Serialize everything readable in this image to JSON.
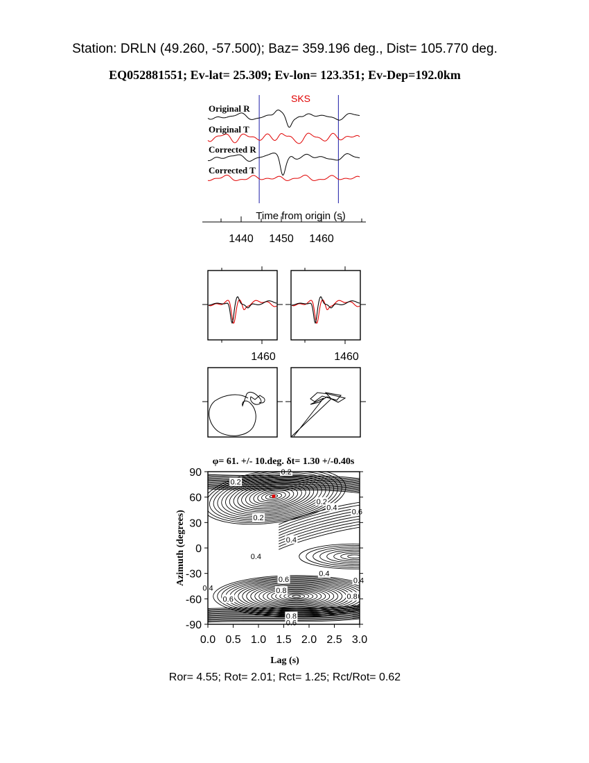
{
  "header": {
    "station_line": "Station: DRLN (49.260,  -57.500); Baz=  359.196 deg., Dist=  105.770 deg.",
    "event_line": "EQ052881551; Ev-lat=  25.309; Ev-lon= 123.351; Ev-Dep=192.0km"
  },
  "colors": {
    "radial": "#000000",
    "transverse": "#e00000",
    "window": "#1a1aa6",
    "phase": "#e00000"
  },
  "chart_data": [
    {
      "type": "line",
      "panel": "seismograms",
      "phase_label": "SKS",
      "xlabel": "Time from origin (s)",
      "xticks": [
        1440,
        1450,
        1460
      ],
      "window_start_s": 1444.5,
      "window_end_s": 1464.2,
      "traces": [
        {
          "label": "Original R",
          "color": "#000000"
        },
        {
          "label": "Original T",
          "color": "#e00000"
        },
        {
          "label": "Corrected R",
          "color": "#000000"
        },
        {
          "label": "Corrected T",
          "color": "#e00000"
        }
      ]
    },
    {
      "type": "line",
      "panel": "waveform-overlays",
      "xtick_labels": [
        "1460",
        "1460"
      ]
    },
    {
      "type": "scatter",
      "panel": "particle-motion",
      "plots": [
        "original",
        "corrected"
      ]
    },
    {
      "type": "heatmap",
      "panel": "energy-grid",
      "title": "φ= 61. +/- 10.deg. δt= 1.30 +/-0.40s",
      "xlabel": "Lag (s)",
      "ylabel": "Azimuth (degrees)",
      "xlim": [
        0,
        3
      ],
      "ylim": [
        -90,
        90
      ],
      "xtick_labels": [
        "0.0",
        "0.5",
        "1.0",
        "1.5",
        "2.0",
        "2.5",
        "3.0"
      ],
      "ytick_labels": [
        "90",
        "60",
        "30",
        "0",
        "-30",
        "-60",
        "-90"
      ],
      "best_fit": {
        "lag_s": 1.3,
        "azimuth_deg": 61
      },
      "contour_labels": [
        {
          "text": "0.2",
          "lag": 1.55,
          "az": 90
        },
        {
          "text": "0.2",
          "lag": 0.55,
          "az": 78
        },
        {
          "text": "0.2",
          "lag": 2.25,
          "az": 55
        },
        {
          "text": "0.4",
          "lag": 2.45,
          "az": 48
        },
        {
          "text": "0.6",
          "lag": 2.95,
          "az": 43
        },
        {
          "text": "0.2",
          "lag": 1.0,
          "az": 36
        },
        {
          "text": "0.4",
          "lag": 1.65,
          "az": 10
        },
        {
          "text": "0.4",
          "lag": 0.95,
          "az": -10
        },
        {
          "text": "0.4",
          "lag": 2.3,
          "az": -30
        },
        {
          "text": "0.4",
          "lag": 2.98,
          "az": -38
        },
        {
          "text": "0.6",
          "lag": 1.5,
          "az": -37
        },
        {
          "text": "0.8",
          "lag": 1.45,
          "az": -50
        },
        {
          "text": "0.4",
          "lag": 0.0,
          "az": -47
        },
        {
          "text": "0.6",
          "lag": 0.4,
          "az": -60
        },
        {
          "text": "0.8",
          "lag": 2.85,
          "az": -57
        },
        {
          "text": "0.8",
          "lag": 1.65,
          "az": -80
        },
        {
          "text": "0.6",
          "lag": 1.65,
          "az": -88
        }
      ]
    }
  ],
  "footer": {
    "ratios_line": "Ror= 4.55; Rot= 2.01; Rct= 1.25; Rct/Rot= 0.62"
  }
}
